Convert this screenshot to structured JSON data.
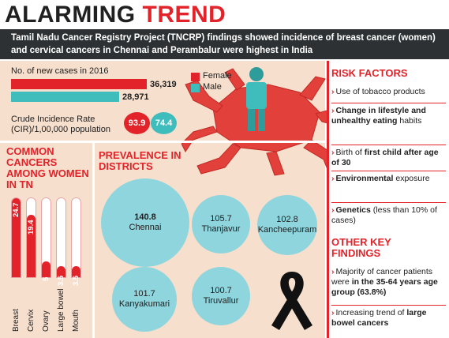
{
  "headline": {
    "word1": "ALARMING",
    "word2": "TREND"
  },
  "banner": "Tamil Nadu Cancer Registry Project (TNCRP) findings showed incidence of breast cancer (women) and cervical cancers in Chennai and Perambalur were highest in India",
  "new_cases": {
    "title": "No. of new cases in 2016",
    "female_value": "36,319",
    "male_value": "28,971",
    "female_num": 36319,
    "male_num": 28971
  },
  "legend": {
    "female": "Female",
    "male": "Male"
  },
  "cir": {
    "label": "Crude Incidence Rate (CIR)/1,00,000 population",
    "female": "93.9",
    "male": "74.4"
  },
  "common_cancers": {
    "title": "COMMON CANCERS AMONG WOMEN IN TN",
    "items": [
      {
        "name": "Breast",
        "value": "24.7",
        "num": 24.7
      },
      {
        "name": "Cervix",
        "value": "19.4",
        "num": 19.4
      },
      {
        "name": "Ovary",
        "value": "5",
        "num": 5
      },
      {
        "name": "Large bowel",
        "value": "3.5",
        "num": 3.5
      },
      {
        "name": "Mouth",
        "value": "3.5",
        "num": 3.5
      }
    ]
  },
  "prevalence": {
    "title": "PREVALENCE IN DISTRICTS",
    "districts": [
      {
        "value": "140.8",
        "name": "Chennai"
      },
      {
        "value": "105.7",
        "name": "Thanjavur"
      },
      {
        "value": "102.8",
        "name": "Kancheepuram"
      },
      {
        "value": "101.7",
        "name": "Kanyakumari"
      },
      {
        "value": "100.7",
        "name": "Tiruvallur"
      }
    ]
  },
  "risk_factors": {
    "title": "RISK FACTORS",
    "items": [
      {
        "pre": "Use of tobacco",
        "bold": "",
        "post": " products"
      },
      {
        "pre": "",
        "bold": "Change in lifestyle and unhealthy eating",
        "post": " habits"
      },
      {
        "pre": "Birth of ",
        "bold": "first child after age of 30",
        "post": ""
      },
      {
        "pre": "",
        "bold": "Environmental",
        "post": " exposure"
      },
      {
        "pre": "",
        "bold": "Genetics",
        "post": " (less than 10% of cases)"
      }
    ]
  },
  "other_findings": {
    "title": "OTHER KEY FINDINGS",
    "items": [
      {
        "pre": "Majority of cancer patients were ",
        "bold": "in the 35-64 years age group (63.8%)",
        "post": ""
      },
      {
        "pre": "Increasing trend of ",
        "bold": "large bowel cancers",
        "post": ""
      }
    ]
  },
  "colors": {
    "red": "#e2232a",
    "teal": "#3fbdbd",
    "light_teal": "#8fd5dd",
    "peach": "#f7dfcd",
    "dark": "#2d3134"
  }
}
